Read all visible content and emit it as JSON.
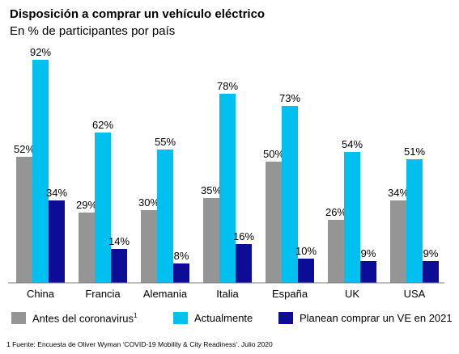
{
  "chart_data": {
    "type": "bar",
    "title": "Disposición a comprar un vehículo eléctrico",
    "subtitle": "En % de participantes por país",
    "categories": [
      "China",
      "Francia",
      "Alemania",
      "Italia",
      "España",
      "UK",
      "USA"
    ],
    "series": [
      {
        "name": "Antes del coronavirus",
        "values": [
          52,
          29,
          30,
          35,
          50,
          26,
          34
        ],
        "color": "#959595"
      },
      {
        "name": "Actualmente",
        "values": [
          92,
          62,
          55,
          78,
          73,
          54,
          51
        ],
        "color": "#00c0f0"
      },
      {
        "name": "Planean comprar un VE en 2021",
        "values": [
          34,
          14,
          8,
          16,
          10,
          9,
          9
        ],
        "color": "#0c0c96"
      }
    ],
    "value_suffix": "%",
    "ylim": [
      0,
      100
    ],
    "grid": false,
    "legend_position": "bottom"
  },
  "legend": {
    "items": [
      {
        "label": "Antes del coronavirus",
        "superscript": "1"
      },
      {
        "label": "Actualmente",
        "superscript": ""
      },
      {
        "label": "Planean comprar un VE en 2021",
        "superscript": ""
      }
    ]
  },
  "footnote": "1 Fuente: Encuesta de Oliver Wyman ‘COVID-19 Mobility & City Readiness’. Julio 2020"
}
